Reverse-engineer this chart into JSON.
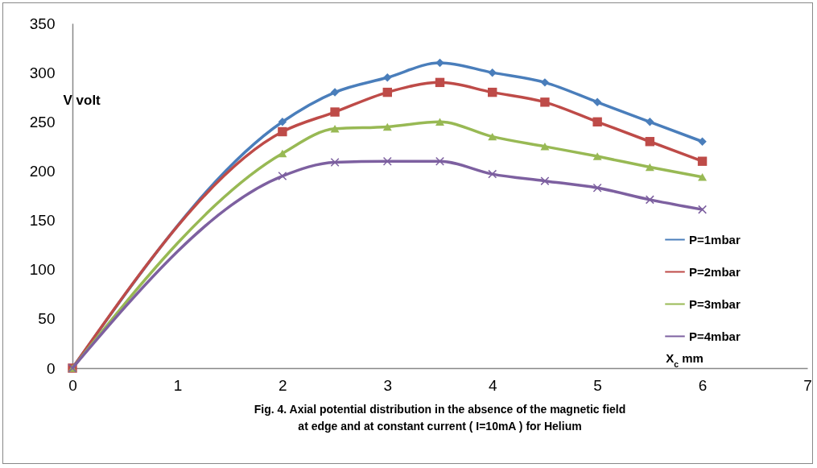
{
  "chart_data": {
    "type": "line",
    "title": "Fig. 4. Axial potential distribution in the absence of the magnetic field  at edge and at constant current ( I=10mA ) for Helium",
    "xlabel": "X$_{c}$ mm",
    "ylabel": "V volt",
    "x": [
      0,
      2,
      2.5,
      3,
      3.5,
      4,
      4.5,
      5,
      5.5,
      6
    ],
    "series": [
      {
        "name": "P=1mbar",
        "color": "#4a7ebb",
        "marker": "diamond",
        "values": [
          0,
          250,
          280,
          295,
          310,
          300,
          290,
          270,
          250,
          230
        ]
      },
      {
        "name": "P=2mbar",
        "color": "#be4b48",
        "marker": "square",
        "values": [
          0,
          240,
          260,
          280,
          290,
          280,
          270,
          250,
          230,
          210
        ]
      },
      {
        "name": "P=3mbar",
        "color": "#98b954",
        "marker": "triangle",
        "values": [
          0,
          218,
          243,
          245,
          250,
          235,
          225,
          215,
          204,
          194
        ]
      },
      {
        "name": "P=4mbar",
        "color": "#7d60a0",
        "marker": "cross",
        "values": [
          0,
          195,
          209,
          210,
          210,
          197,
          190,
          183,
          171,
          161
        ]
      }
    ],
    "xlim": [
      0,
      7
    ],
    "xticks": [
      0,
      1,
      2,
      3,
      4,
      5,
      6,
      7
    ],
    "ylim": [
      0,
      350
    ],
    "yticks": [
      0,
      50,
      100,
      150,
      200,
      250,
      300,
      350
    ],
    "grid": false,
    "legend": "right"
  }
}
